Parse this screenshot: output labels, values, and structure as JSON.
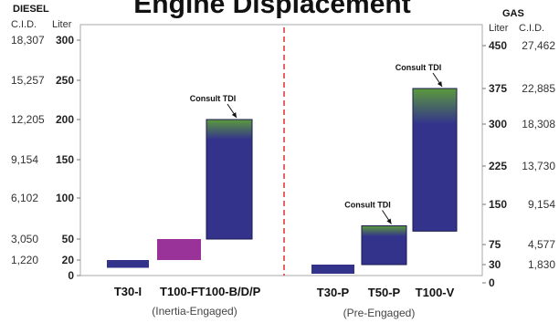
{
  "chart_data": {
    "type": "bar",
    "title": "Engine Displacement",
    "left_axis": {
      "header": "DIESEL",
      "cid_label": "C.I.D.",
      "liter_label": "Liter",
      "ticks": [
        {
          "cid": "18,307",
          "liter": "300",
          "value": 300
        },
        {
          "cid": "15,257",
          "liter": "250",
          "value": 250
        },
        {
          "cid": "12,205",
          "liter": "200",
          "value": 200
        },
        {
          "cid": "9,154",
          "liter": "150",
          "value": 150
        },
        {
          "cid": "6,102",
          "liter": "100",
          "value": 100
        },
        {
          "cid": "3,050",
          "liter": "50",
          "value": 50
        },
        {
          "cid": "1,220",
          "liter": "20",
          "value": 20
        },
        {
          "cid": "",
          "liter": "0",
          "value": 0
        }
      ],
      "range": [
        0,
        300
      ]
    },
    "right_axis": {
      "header": "GAS",
      "liter_label": "Liter",
      "cid_label": "C.I.D.",
      "ticks": [
        {
          "liter": "450",
          "cid": "27,462",
          "value": 450
        },
        {
          "liter": "375",
          "cid": "22,885",
          "value": 375
        },
        {
          "liter": "300",
          "cid": "18,308",
          "value": 300
        },
        {
          "liter": "225",
          "cid": "13,730",
          "value": 225
        },
        {
          "liter": "150",
          "cid": "9,154",
          "value": 150
        },
        {
          "liter": "75",
          "cid": "4,577",
          "value": 75
        },
        {
          "liter": "30",
          "cid": "1,830",
          "value": 30
        },
        {
          "liter": "0",
          "cid": "",
          "value": 0
        }
      ],
      "range": [
        0,
        450
      ]
    },
    "groups": [
      {
        "label": "(Inertia-Engaged)",
        "axis": "left"
      },
      {
        "label": "(Pre-Engaged)",
        "axis": "right"
      }
    ],
    "bars": [
      {
        "category": "T30-I",
        "group": 0,
        "low": 10,
        "high": 20,
        "color": "#33338c",
        "tdi": null
      },
      {
        "category": "T100-F",
        "group": 0,
        "low": 20,
        "high": 50,
        "color": "#993399",
        "tdi": null
      },
      {
        "category": "T100-B/D/P",
        "group": 0,
        "low": 50,
        "high": 200,
        "color": "#33338c",
        "tdi": 175,
        "annotation": "Consult TDI"
      },
      {
        "category": "T30-P",
        "group": 1,
        "low": 15,
        "high": 30,
        "color": "#33338c",
        "tdi": null
      },
      {
        "category": "T50-P",
        "group": 1,
        "low": 30,
        "high": 110,
        "color": "#33338c",
        "tdi": 90,
        "annotation": "Consult TDI"
      },
      {
        "category": "T100-V",
        "group": 1,
        "low": 100,
        "high": 375,
        "color": "#33338c",
        "tdi": 300,
        "annotation": "Consult TDI"
      }
    ],
    "colors": {
      "bar": "#33338c",
      "bar_alt": "#993399",
      "tdi_top": "#5c9a3c",
      "divider": "#e03030",
      "axis": "#999999"
    }
  }
}
